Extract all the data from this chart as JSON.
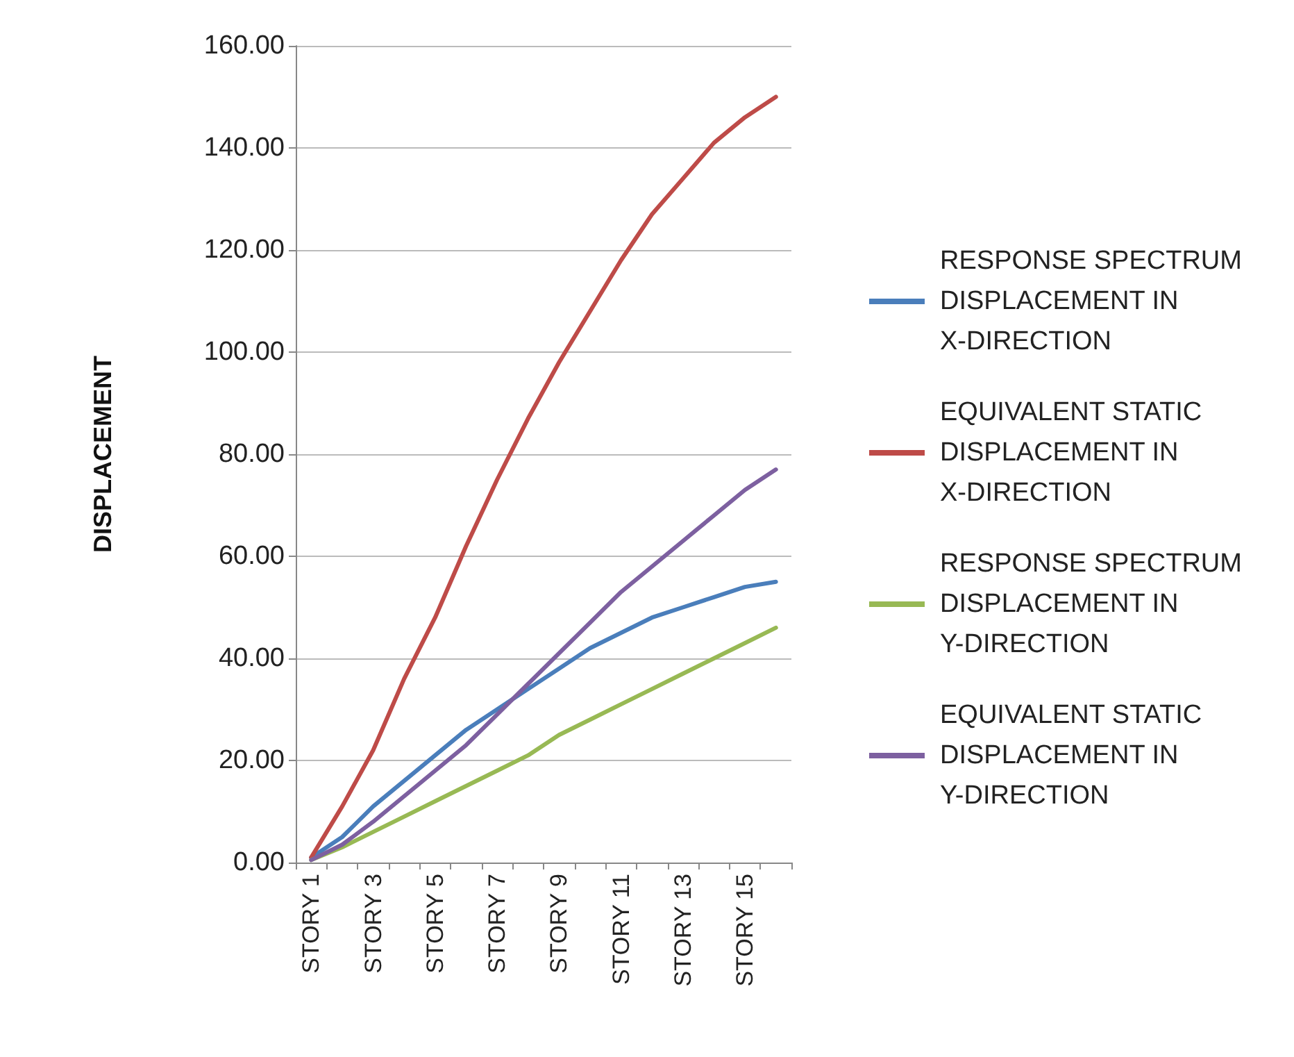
{
  "chart_data": {
    "type": "line",
    "ylabel": "DISPLACEMENT",
    "categories": [
      "STORY 1",
      null,
      "STORY 3",
      null,
      "STORY 5",
      null,
      "STORY 7",
      null,
      "STORY 9",
      null,
      "STORY 11",
      null,
      "STORY 13",
      null,
      "STORY 15",
      null
    ],
    "series": [
      {
        "name": "RESPONSE SPECTRUM DISPLACEMENT IN X-DIRECTION",
        "color": "#4a7ebb",
        "values": [
          1,
          5,
          11,
          16,
          21,
          26,
          30,
          34,
          38,
          42,
          45,
          48,
          50,
          52,
          54,
          55
        ]
      },
      {
        "name": "EQUIVALENT STATIC DISPLACEMENT IN X-DIRECTION",
        "color": "#be4b48",
        "values": [
          1,
          11,
          22,
          36,
          48,
          62,
          75,
          87,
          98,
          108,
          118,
          127,
          134,
          141,
          146,
          150
        ]
      },
      {
        "name": "RESPONSE SPECTRUM DISPLACEMENT IN Y-DIRECTION",
        "color": "#98b954",
        "values": [
          0.5,
          3,
          6,
          9,
          12,
          15,
          18,
          21,
          25,
          28,
          31,
          34,
          37,
          40,
          43,
          46
        ]
      },
      {
        "name": "EQUIVALENT STATIC DISPLACEMENT IN Y-DIRECTION",
        "color": "#7d60a0",
        "values": [
          0.5,
          3.5,
          8,
          13,
          18,
          23,
          29,
          35,
          41,
          47,
          53,
          58,
          63,
          68,
          73,
          77
        ]
      }
    ],
    "ylim": [
      0,
      160
    ],
    "yticks": [
      {
        "value": 0,
        "label": "0.00"
      },
      {
        "value": 20,
        "label": "20.00"
      },
      {
        "value": 40,
        "label": "40.00"
      },
      {
        "value": 60,
        "label": "60.00"
      },
      {
        "value": 80,
        "label": "80.00"
      },
      {
        "value": 100,
        "label": "100.00"
      },
      {
        "value": 120,
        "label": "120.00"
      },
      {
        "value": 140,
        "label": "140.00"
      },
      {
        "value": 160,
        "label": "160.00"
      }
    ],
    "grid": "y",
    "legend": "right",
    "marker": "none",
    "line_style": "solid"
  }
}
